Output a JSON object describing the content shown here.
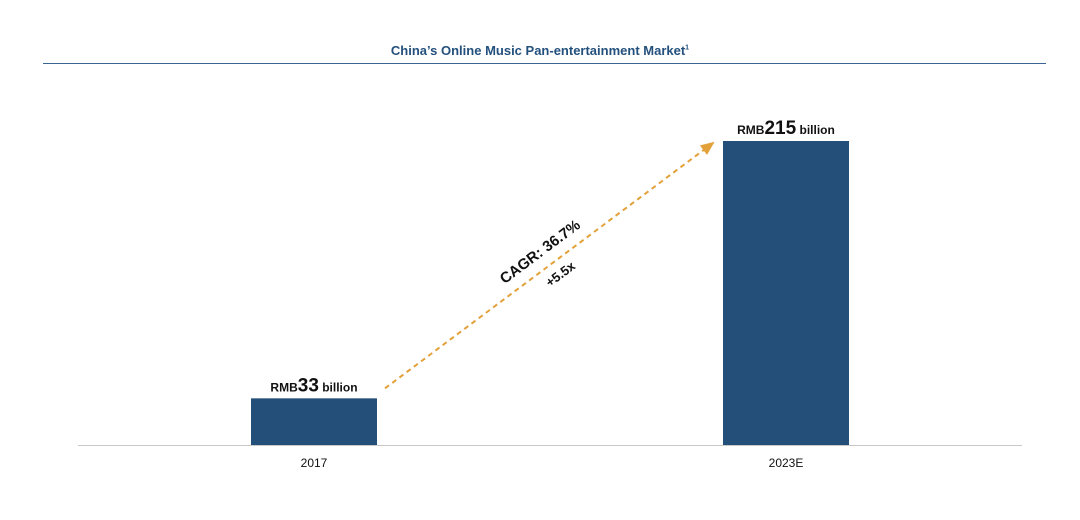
{
  "chart_data": {
    "type": "bar",
    "title": "China’s Online Music Pan-entertainment Market",
    "title_footnote": "1",
    "categories": [
      "2017",
      "2023E"
    ],
    "values": [
      33,
      215
    ],
    "value_labels": [
      {
        "prefix": "RMB",
        "number": "33",
        "suffix": " billion"
      },
      {
        "prefix": "RMB",
        "number": "215",
        "suffix": " billion"
      }
    ],
    "unit": "RMB billion",
    "xlabel": "",
    "ylabel": "",
    "ylim": [
      0,
      215
    ],
    "grid": false,
    "annotation": {
      "growth_arrow": {
        "from": "2017",
        "to": "2023E"
      },
      "cagr_text": "CAGR: 36.7%",
      "multiple_text": "+5.5x"
    },
    "colors": {
      "bar": "#234f78",
      "arrow": "#e3a13a",
      "title": "#23507c",
      "rule": "#3a6491",
      "axis": "#c8c8c8",
      "text": "#111111"
    }
  }
}
